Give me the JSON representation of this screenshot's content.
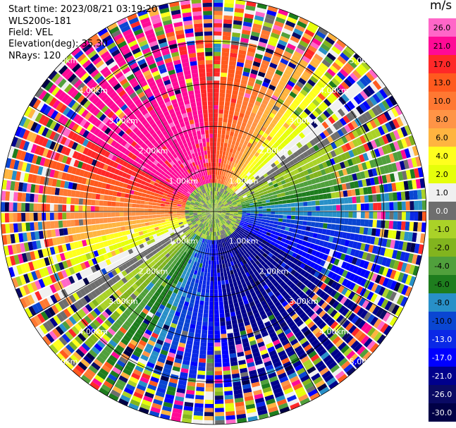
{
  "header": {
    "start_time": "Start time: 2023/08/21 03:19:20",
    "instrument": "WLS200s-181",
    "field": "Field: VEL",
    "elevation": "Elevation(deg): 35.30",
    "nrays": "NRays: 120"
  },
  "chart_data": {
    "type": "heatmap",
    "plot_kind": "PPI radial velocity",
    "field": "VEL",
    "units": "m/s",
    "nrays": 120,
    "elevation_deg": 35.3,
    "range_rings_km": [
      1.0,
      2.0,
      3.0,
      4.0,
      5.0
    ],
    "ring_labels": [
      "1.00km",
      "2.00km",
      "3.00km",
      "4.00km",
      "5.00km"
    ],
    "max_range_km": 5.0,
    "dominant_flow": "negative (blue) velocities toward south-southeast, positive (red) toward northwest; noisy multicolor beyond ~2.5 km",
    "colorbar": {
      "label": "m/s",
      "tick_labels": [
        "26.0",
        "21.0",
        "17.0",
        "13.0",
        "10.0",
        "8.0",
        "6.0",
        "4.0",
        "2.0",
        "1.0",
        "0.0",
        "-1.0",
        "-2.0",
        "-4.0",
        "-6.0",
        "-8.0",
        "-10.0",
        "-13.0",
        "-17.0",
        "-21.0",
        "-26.0",
        "-30.0"
      ],
      "colors": [
        "#ff66c8",
        "#ff0a96",
        "#ff2828",
        "#ff5a1e",
        "#ff7832",
        "#ff9446",
        "#ffb440",
        "#ffff1e",
        "#e6ff0a",
        "#f0f0f0",
        "#6e6e6e",
        "#aad228",
        "#82b41e",
        "#50a03c",
        "#1e7d1e",
        "#2890c8",
        "#0a46d2",
        "#0a28e6",
        "#0000ff",
        "#00008c",
        "#0a0a64",
        "#000046"
      ]
    }
  }
}
